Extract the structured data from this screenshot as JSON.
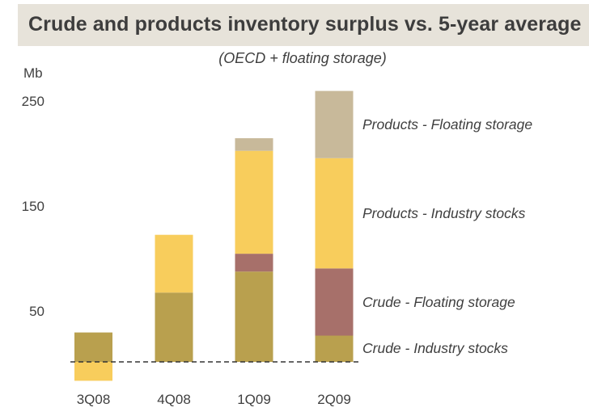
{
  "header": {
    "title": "Crude and products inventory surplus vs. 5-year average",
    "subtitle": "(OECD + floating storage)",
    "unit_label": "Mb"
  },
  "colors": {
    "header_bg": "#e7e3da",
    "crude_industry": "#b9a04e",
    "crude_floating": "#a7706a",
    "products_industry": "#f8cd5c",
    "products_floating": "#c8b99a",
    "zero_line": "#333333"
  },
  "chart_data": {
    "type": "bar",
    "stacked": true,
    "title": "Crude and products inventory surplus vs. 5-year average",
    "subtitle": "(OECD + floating storage)",
    "xlabel": "",
    "ylabel": "Mb",
    "ylim": [
      -25,
      275
    ],
    "yticks": [
      50,
      150,
      250
    ],
    "grid": false,
    "zero_line": "dashed",
    "legend_placement": "right, inline labels",
    "categories": [
      "3Q08",
      "4Q08",
      "1Q09",
      "2Q09"
    ],
    "series": [
      {
        "name": "Crude - Industry stocks",
        "color_key": "crude_industry",
        "values": [
          28,
          66,
          86,
          25
        ]
      },
      {
        "name": "Crude - Floating storage",
        "color_key": "crude_floating",
        "values": [
          0,
          0,
          17,
          64
        ]
      },
      {
        "name": "Products - Industry stocks",
        "color_key": "products_industry",
        "values": [
          -18,
          55,
          98,
          105
        ]
      },
      {
        "name": "Products - Floating storage",
        "color_key": "products_floating",
        "values": [
          0,
          0,
          12,
          64
        ]
      }
    ]
  }
}
